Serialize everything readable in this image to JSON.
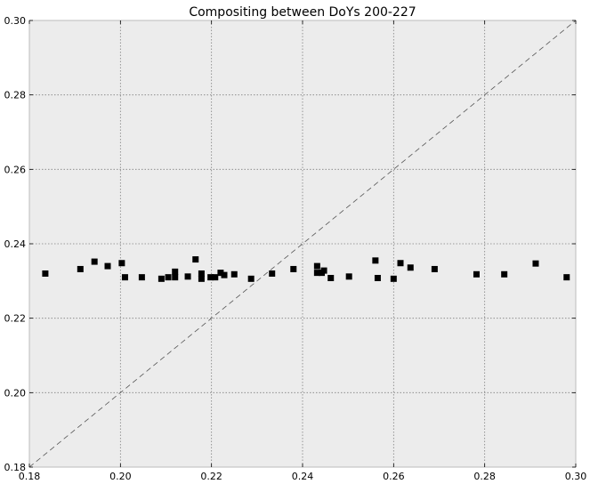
{
  "chart_data": {
    "type": "scatter",
    "title": "Compositing between DoYs 200-227",
    "xlabel": "",
    "ylabel": "",
    "xlim": [
      0.18,
      0.3
    ],
    "ylim": [
      0.18,
      0.3
    ],
    "xticks": [
      0.18,
      0.2,
      0.22,
      0.24,
      0.26,
      0.28,
      0.3
    ],
    "yticks": [
      0.18,
      0.2,
      0.22,
      0.24,
      0.26,
      0.28,
      0.3
    ],
    "xtick_labels": [
      "0.18",
      "0.20",
      "0.22",
      "0.24",
      "0.26",
      "0.28",
      "0.30"
    ],
    "ytick_labels": [
      "0.18",
      "0.20",
      "0.22",
      "0.24",
      "0.26",
      "0.28",
      "0.30"
    ],
    "grid": true,
    "reference_line": {
      "style": "dashed",
      "from": [
        0.18,
        0.18
      ],
      "to": [
        0.3,
        0.3
      ]
    },
    "marker": "square",
    "colors": {
      "plot_background": "#ececec",
      "marker": "#000000",
      "grid": "#808080",
      "frame": "#bbbbbb"
    },
    "series": [
      {
        "x": [
          0.1835,
          0.1912,
          0.1943,
          0.1972,
          0.2003,
          0.201,
          0.2047,
          0.209,
          0.2105,
          0.212,
          0.212,
          0.2148,
          0.2165,
          0.2178,
          0.2178,
          0.2198,
          0.2208,
          0.222,
          0.2228,
          0.225,
          0.2287,
          0.2333,
          0.238,
          0.2432,
          0.2432,
          0.2442,
          0.2447,
          0.2462,
          0.2502,
          0.256,
          0.2565,
          0.26,
          0.2615,
          0.2637,
          0.269,
          0.2782,
          0.2843,
          0.2912,
          0.298
        ],
        "y": [
          0.232,
          0.2332,
          0.2352,
          0.234,
          0.2348,
          0.231,
          0.231,
          0.2306,
          0.231,
          0.2325,
          0.231,
          0.2312,
          0.2358,
          0.2306,
          0.232,
          0.231,
          0.231,
          0.2322,
          0.2316,
          0.2318,
          0.2306,
          0.232,
          0.2332,
          0.234,
          0.2322,
          0.2322,
          0.2328,
          0.2308,
          0.2312,
          0.2355,
          0.2308,
          0.2306,
          0.2348,
          0.2336,
          0.2332,
          0.2318,
          0.2318,
          0.2347,
          0.231
        ]
      }
    ]
  }
}
